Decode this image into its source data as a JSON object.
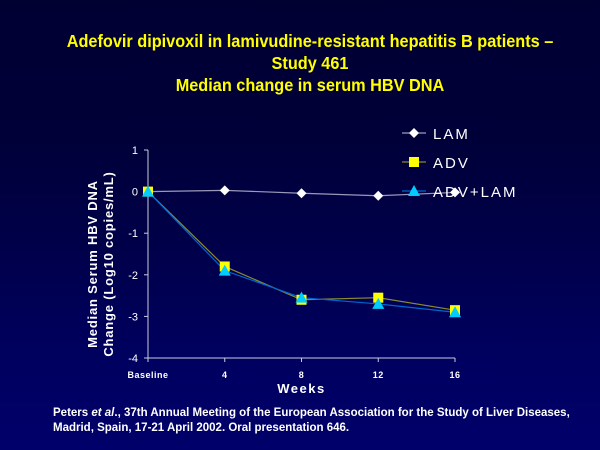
{
  "title": {
    "line1": "Adefovir dipivoxil in lamivudine-resistant hepatitis B patients –",
    "line2": "Study 461",
    "line3": "Median change in serum HBV DNA"
  },
  "footnote": {
    "author": "Peters ",
    "etal": "et al",
    "rest": "., 37th Annual Meeting of the European Association for the Study of Liver Diseases, Madrid, Spain, 17-21 April 2002. Oral presentation 646."
  },
  "chart_data": {
    "type": "line",
    "title": "Median change in serum HBV DNA",
    "xlabel": "Weeks",
    "ylabel_line1": "Median Serum HBV DNA",
    "ylabel_line2": "Change (Log10 copies/mL)",
    "categories": [
      "Baseline",
      "4",
      "8",
      "12",
      "16"
    ],
    "ylim": [
      -4,
      1
    ],
    "yticks": [
      "1",
      "0",
      "-1",
      "-2",
      "-3",
      "-4"
    ],
    "legend_position": "top-right",
    "grid": false,
    "series": [
      {
        "name": "LAM",
        "marker": "diamond",
        "color": "#ffffff",
        "line_color": "#9999bb",
        "values": [
          0,
          0.03,
          -0.04,
          -0.1,
          -0.02
        ]
      },
      {
        "name": "ADV",
        "marker": "square",
        "color": "#ffff00",
        "line_color": "#8a8a30",
        "values": [
          0,
          -1.8,
          -2.6,
          -2.55,
          -2.85
        ]
      },
      {
        "name": "ADV+LAM",
        "marker": "triangle",
        "color": "#00ccff",
        "line_color": "#0066cc",
        "values": [
          0,
          -1.9,
          -2.55,
          -2.7,
          -2.9
        ]
      }
    ]
  }
}
